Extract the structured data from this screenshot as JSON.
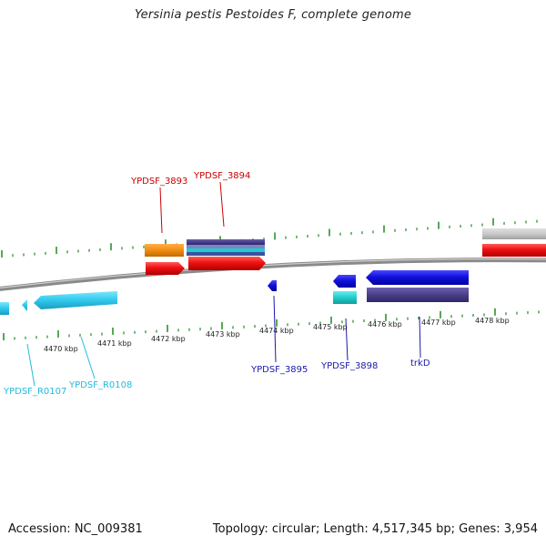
{
  "title": "Yersinia pestis Pestoides F, complete genome",
  "footer": {
    "accession": "Accession: NC_009381",
    "summary": "Topology: circular; Length: 4,517,345 bp; Genes: 3,954"
  },
  "scale_labels": [
    "4470 kbp",
    "4471 kbp",
    "4472 kbp",
    "4473 kbp",
    "4474 kbp",
    "4475 kbp",
    "4476 kbp",
    "4477 kbp",
    "4478 kbp"
  ],
  "gene_labels": [
    {
      "id": "label-ypdsf-3893",
      "text": "YPDSF_3893",
      "color": "#cc0000"
    },
    {
      "id": "label-ypdsf-3894",
      "text": "YPDSF_3894",
      "color": "#cc0000"
    },
    {
      "id": "label-ypdsf-3895",
      "text": "YPDSF_3895",
      "color": "#1a1aaa"
    },
    {
      "id": "label-ypdsf-3898",
      "text": "YPDSF_3898",
      "color": "#1a1aaa"
    },
    {
      "id": "label-trkd",
      "text": "trkD",
      "color": "#1a1aaa"
    },
    {
      "id": "label-ypdsf-r0107",
      "text": "YPDSF_R0107",
      "color": "#22bbdd"
    },
    {
      "id": "label-ypdsf-r0108",
      "text": "YPDSF_R0108",
      "color": "#22bbdd"
    }
  ],
  "colors": {
    "backbone": "#7a7a7a",
    "tick": "#1f8a1f",
    "forward_cds": "#ee1111",
    "reverse_cds": "#1111dd",
    "rna": "#33ccee",
    "orange_feature": "#f08c10",
    "purple_feature": "#4a3f8a",
    "cyan_feature": "#22cccc",
    "grey_feature": "#c8c8c8"
  }
}
